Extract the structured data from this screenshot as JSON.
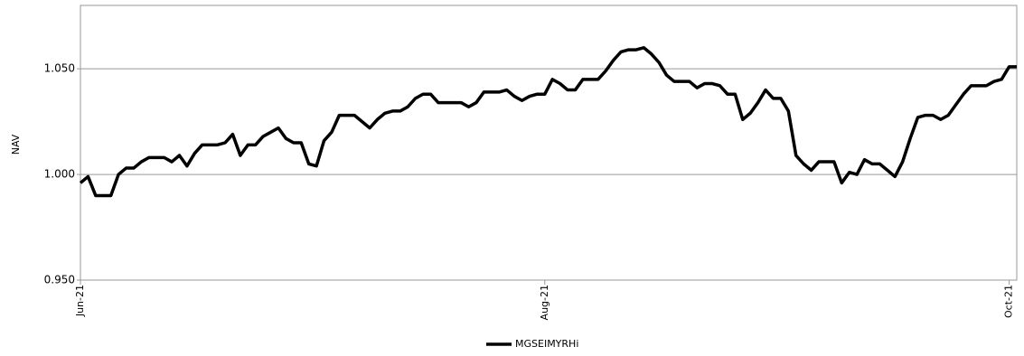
{
  "chart_data": {
    "type": "line",
    "y_label": "NAV",
    "categories": [
      "Jun-21",
      null,
      null,
      null,
      null,
      null,
      null,
      null,
      null,
      null,
      null,
      null,
      null,
      null,
      null,
      null,
      null,
      null,
      null,
      null,
      null,
      null,
      null,
      null,
      null,
      null,
      null,
      null,
      null,
      null,
      null,
      null,
      null,
      null,
      null,
      null,
      null,
      null,
      null,
      null,
      null,
      null,
      null,
      null,
      null,
      null,
      null,
      null,
      null,
      null,
      null,
      null,
      null,
      null,
      null,
      null,
      null,
      null,
      null,
      null,
      null,
      "Aug-21",
      null,
      null,
      null,
      null,
      null,
      null,
      null,
      null,
      null,
      null,
      null,
      null,
      null,
      null,
      null,
      null,
      null,
      null,
      null,
      null,
      null,
      null,
      null,
      null,
      null,
      null,
      null,
      null,
      null,
      null,
      null,
      null,
      null,
      null,
      null,
      null,
      null,
      null,
      null,
      null,
      null,
      null,
      null,
      null,
      null,
      null,
      null,
      null,
      null,
      null,
      null,
      null,
      null,
      null,
      null,
      null,
      null,
      null,
      null,
      null,
      "Oct-21",
      null
    ],
    "series": [
      {
        "name": "MGSEIMYRHi",
        "color": "#000000",
        "values": [
          0.996,
          0.999,
          0.99,
          0.99,
          0.99,
          1.0,
          1.003,
          1.003,
          1.006,
          1.008,
          1.008,
          1.008,
          1.006,
          1.009,
          1.004,
          1.01,
          1.014,
          1.014,
          1.014,
          1.015,
          1.019,
          1.009,
          1.014,
          1.014,
          1.018,
          1.02,
          1.022,
          1.017,
          1.015,
          1.015,
          1.005,
          1.004,
          1.016,
          1.02,
          1.028,
          1.028,
          1.028,
          1.025,
          1.022,
          1.026,
          1.029,
          1.03,
          1.03,
          1.032,
          1.036,
          1.038,
          1.038,
          1.034,
          1.034,
          1.034,
          1.034,
          1.032,
          1.034,
          1.039,
          1.039,
          1.039,
          1.04,
          1.037,
          1.035,
          1.037,
          1.038,
          1.038,
          1.045,
          1.043,
          1.04,
          1.04,
          1.045,
          1.045,
          1.045,
          1.049,
          1.054,
          1.058,
          1.059,
          1.059,
          1.06,
          1.057,
          1.053,
          1.047,
          1.044,
          1.044,
          1.044,
          1.041,
          1.043,
          1.043,
          1.042,
          1.038,
          1.038,
          1.026,
          1.029,
          1.034,
          1.04,
          1.036,
          1.036,
          1.03,
          1.009,
          1.005,
          1.002,
          1.006,
          1.006,
          1.006,
          0.996,
          1.001,
          1.0,
          1.007,
          1.005,
          1.005,
          1.002,
          0.999,
          1.006,
          1.017,
          1.027,
          1.028,
          1.028,
          1.026,
          1.028,
          1.033,
          1.038,
          1.042,
          1.042,
          1.042,
          1.044,
          1.045,
          1.051,
          1.051
        ]
      }
    ],
    "ylim": [
      0.95,
      1.08
    ],
    "yticks": [
      {
        "value": 0.95,
        "label": "0.950"
      },
      {
        "value": 1,
        "label": "1.000"
      },
      {
        "value": 1.05,
        "label": "1.050"
      }
    ],
    "grid": true,
    "legend": "bottom"
  }
}
